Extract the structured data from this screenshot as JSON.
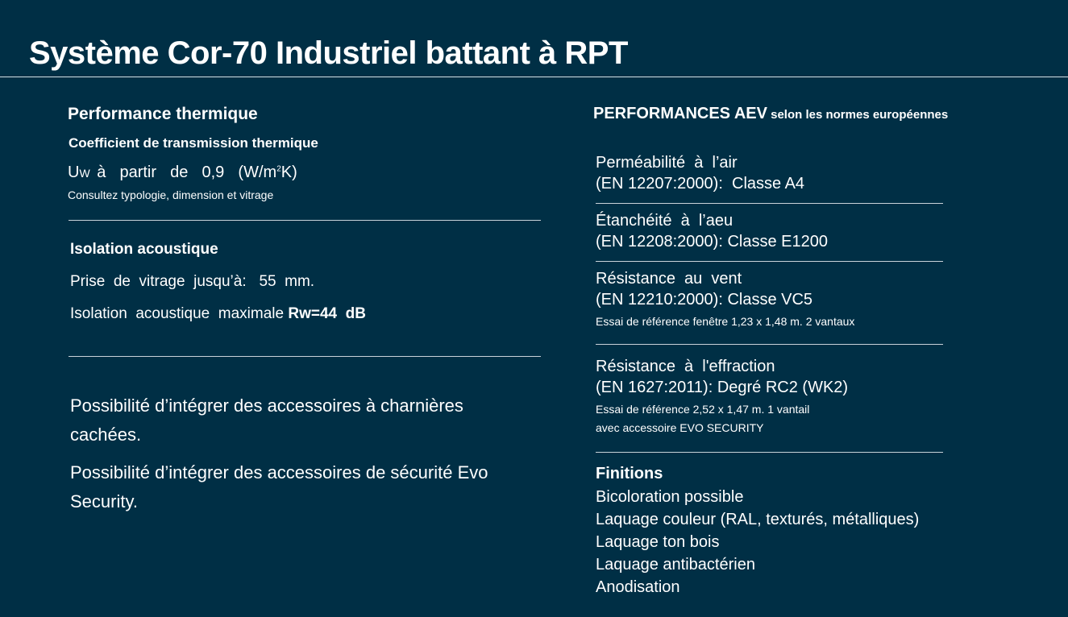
{
  "header": {
    "title": "Système Cor-70 Industriel battant à RPT"
  },
  "thermal": {
    "heading": "Performance thermique",
    "subheading": "Coefficient de transmission thermique",
    "uw_prefix": "U",
    "uw_sub": "W",
    "uw_text": " à  partir  de  0,9  (W/m",
    "uw_sup": "2",
    "uw_end": "K)",
    "note": "Consultez typologie, dimension et vitrage"
  },
  "acoustic": {
    "heading": "Isolation acoustique",
    "glazing": "Prise  de  vitrage  jusqu’à:   55  mm.",
    "max_label": "Isolation  acoustique  maximale ",
    "max_value": "Rw=44  dB"
  },
  "possibilities": [
    "Possibilité d’intégrer des accessoires à charnières cachées.",
    "Possibilité d’intégrer des accessoires de sécurité Evo Security."
  ],
  "aev": {
    "heading_main": "PERFORMANCES AEV",
    "heading_sub": " selon les normes européennes",
    "items": [
      {
        "line1": "Perméabilité  à  l’air",
        "line2": "(EN 12207:2000):  Classe A4"
      },
      {
        "line1": "Étanchéité  à  l’aeu",
        "line2": "(EN 12208:2000): Classe E1200"
      },
      {
        "line1": "Résistance  au  vent",
        "line2": "(EN 12210:2000): Classe VC5",
        "note1": "Essai de référence fenêtre 1,23 x 1,48 m. 2 vantaux"
      },
      {
        "line1": "Résistance  à  l'effraction",
        "line2": "(EN 1627:2011): Degré RC2 (WK2)",
        "note1": "Essai de référence 2,52 x 1,47 m. 1 vantail",
        "note2": "avec accessoire EVO SECURITY"
      }
    ]
  },
  "finishes": {
    "heading": "Finitions",
    "items": [
      "Bicoloration possible",
      "Laquage couleur (RAL, texturés, métalliques)",
      "Laquage ton bois",
      "Laquage antibactérien",
      "Anodisation"
    ]
  }
}
